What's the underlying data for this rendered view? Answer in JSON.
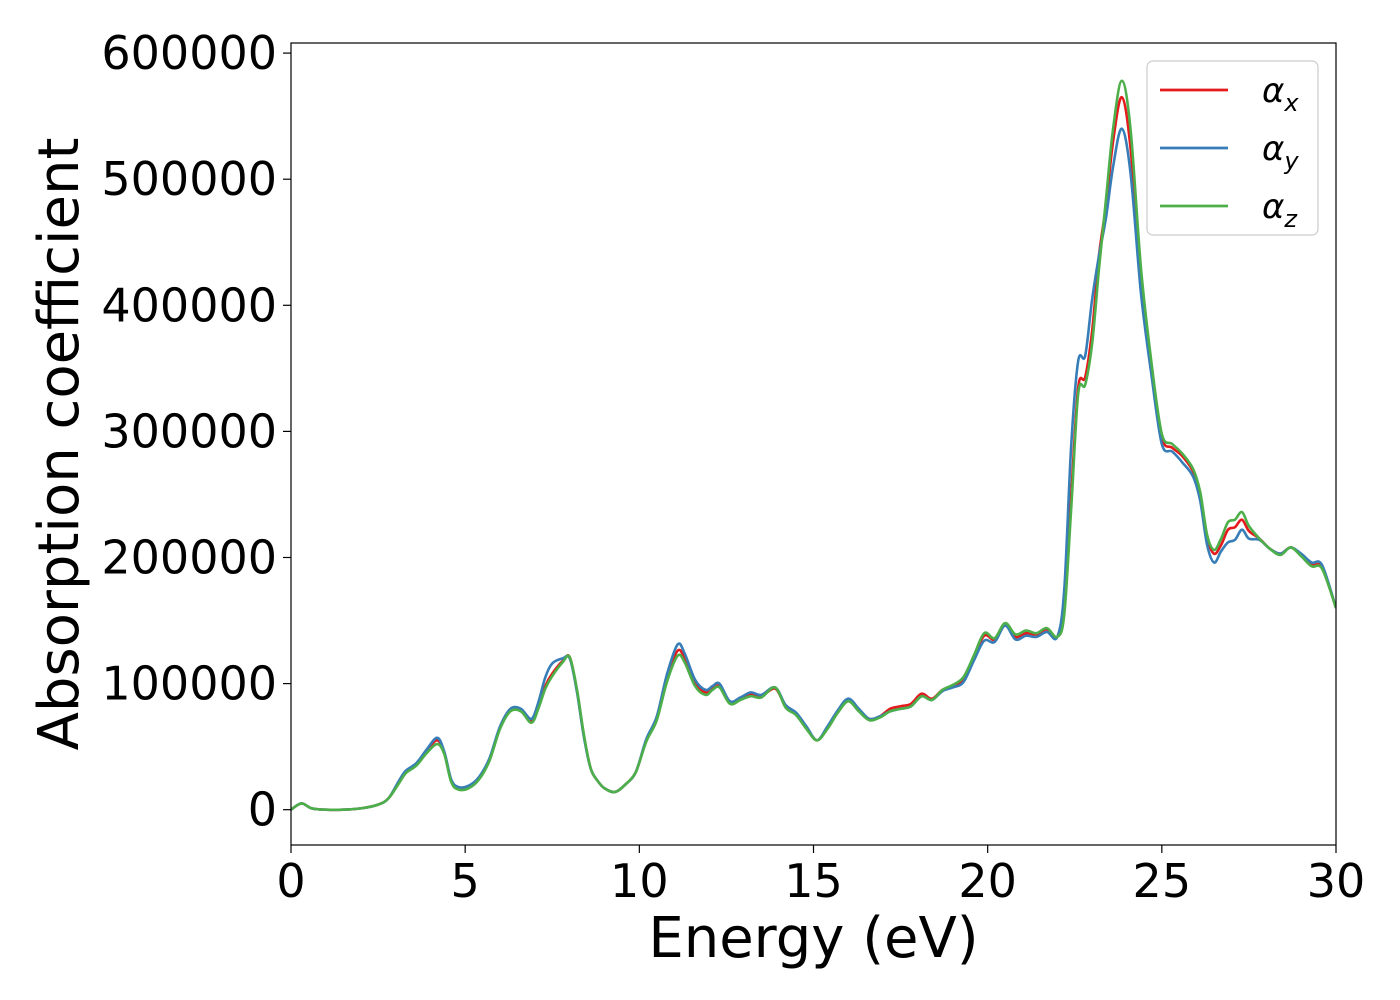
{
  "chart_data": {
    "type": "line",
    "title": "",
    "xlabel": "Energy (eV)",
    "ylabel": "Absorption coefficient",
    "xlim": [
      0,
      30
    ],
    "ylim": [
      -28000,
      608000
    ],
    "xticks": [
      0,
      5,
      10,
      15,
      20,
      25,
      30
    ],
    "yticks": [
      0,
      100000,
      200000,
      300000,
      400000,
      500000,
      600000
    ],
    "grid": false,
    "legend_position": "top-right",
    "x": [
      0,
      0.3,
      0.6,
      1,
      1.5,
      2,
      2.5,
      2.8,
      3.1,
      3.3,
      3.6,
      3.9,
      4.2,
      4.4,
      4.6,
      4.8,
      5.1,
      5.4,
      5.7,
      6.0,
      6.3,
      6.6,
      6.9,
      7.1,
      7.3,
      7.5,
      7.8,
      8.0,
      8.2,
      8.4,
      8.6,
      8.8,
      9.0,
      9.3,
      9.6,
      9.9,
      10.2,
      10.5,
      10.8,
      11.1,
      11.3,
      11.6,
      11.9,
      12.1,
      12.3,
      12.6,
      12.9,
      13.2,
      13.5,
      13.9,
      14.2,
      14.5,
      14.8,
      15.1,
      15.4,
      15.7,
      16.0,
      16.3,
      16.6,
      16.9,
      17.2,
      17.5,
      17.8,
      18.1,
      18.4,
      18.7,
      19.0,
      19.3,
      19.6,
      19.9,
      20.2,
      20.5,
      20.8,
      21.1,
      21.4,
      21.7,
      22.0,
      22.2,
      22.4,
      22.6,
      22.8,
      23.0,
      23.2,
      23.4,
      23.6,
      23.85,
      24.1,
      24.4,
      24.7,
      25.0,
      25.3,
      25.6,
      25.9,
      26.1,
      26.3,
      26.5,
      26.7,
      26.9,
      27.1,
      27.3,
      27.5,
      27.8,
      28.1,
      28.4,
      28.7,
      29.0,
      29.3,
      29.6,
      30.0
    ],
    "series": [
      {
        "name": "α_x",
        "color": "#e41a1c",
        "values": [
          0,
          5000,
          1000,
          0,
          0,
          1000,
          4000,
          9000,
          22000,
          30000,
          36000,
          47000,
          55000,
          45000,
          23000,
          17000,
          18000,
          25000,
          40000,
          65000,
          79000,
          79000,
          70000,
          82000,
          98000,
          108000,
          118000,
          121000,
          96000,
          60000,
          33000,
          23000,
          17000,
          14000,
          20000,
          30000,
          55000,
          72000,
          105000,
          126000,
          120000,
          100000,
          93000,
          96000,
          98000,
          85000,
          88000,
          92000,
          90000,
          96000,
          82000,
          76000,
          65000,
          55000,
          65000,
          78000,
          87000,
          79000,
          72000,
          74000,
          80000,
          82000,
          84000,
          92000,
          88000,
          95000,
          98000,
          103000,
          120000,
          138000,
          135000,
          147000,
          137000,
          140000,
          139000,
          143000,
          137000,
          160000,
          250000,
          335000,
          343000,
          380000,
          440000,
          480000,
          530000,
          565000,
          525000,
          420000,
          350000,
          295000,
          287000,
          280000,
          268000,
          250000,
          216000,
          203000,
          210000,
          222000,
          224000,
          230000,
          221000,
          215000,
          207000,
          203000,
          208000,
          202000,
          194000,
          192000,
          160000
        ]
      },
      {
        "name": "α_y",
        "color": "#377eb8",
        "values": [
          0,
          5000,
          1000,
          0,
          0,
          1000,
          4000,
          9000,
          23000,
          31000,
          37000,
          48000,
          57000,
          46000,
          24000,
          18000,
          19000,
          26000,
          41000,
          66000,
          80000,
          80000,
          72000,
          85000,
          105000,
          116000,
          120000,
          120000,
          95000,
          59000,
          33000,
          23000,
          17000,
          14000,
          20000,
          30000,
          56000,
          74000,
          108000,
          131000,
          124000,
          103000,
          95000,
          98000,
          100000,
          86000,
          89000,
          93000,
          91000,
          97000,
          83000,
          77000,
          66000,
          55000,
          66000,
          79000,
          88000,
          80000,
          72000,
          74000,
          78000,
          80000,
          82000,
          90000,
          87000,
          94000,
          97000,
          101000,
          118000,
          134000,
          133000,
          146000,
          135000,
          138000,
          137000,
          141000,
          137000,
          175000,
          290000,
          356000,
          360000,
          405000,
          440000,
          470000,
          510000,
          540000,
          505000,
          410000,
          345000,
          290000,
          284000,
          275000,
          264000,
          245000,
          210000,
          196000,
          205000,
          212000,
          214000,
          222000,
          215000,
          214000,
          207000,
          203000,
          208000,
          203000,
          196000,
          194000,
          160000
        ]
      },
      {
        "name": "α_z",
        "color": "#4daf4a",
        "values": [
          0,
          5000,
          1000,
          0,
          0,
          1000,
          4000,
          9000,
          21000,
          29000,
          35000,
          45000,
          52000,
          44000,
          22000,
          16000,
          17000,
          24000,
          39000,
          64000,
          78000,
          78000,
          69000,
          80000,
          96000,
          106000,
          117000,
          121000,
          97000,
          61000,
          33000,
          23000,
          17000,
          14000,
          20000,
          30000,
          54000,
          71000,
          102000,
          122000,
          117000,
          98000,
          91000,
          95000,
          97000,
          84000,
          87000,
          90000,
          89000,
          97000,
          81000,
          75000,
          64000,
          55000,
          64000,
          77000,
          86000,
          78000,
          71000,
          73000,
          78000,
          80000,
          82000,
          90000,
          87000,
          95000,
          99000,
          105000,
          122000,
          140000,
          136000,
          148000,
          139000,
          142000,
          140000,
          144000,
          137000,
          155000,
          240000,
          330000,
          337000,
          370000,
          430000,
          485000,
          540000,
          578000,
          540000,
          430000,
          355000,
          298000,
          290000,
          282000,
          270000,
          252000,
          218000,
          206000,
          215000,
          228000,
          230000,
          236000,
          225000,
          215000,
          207000,
          202000,
          208000,
          201000,
          193000,
          191000,
          160000
        ]
      }
    ]
  }
}
